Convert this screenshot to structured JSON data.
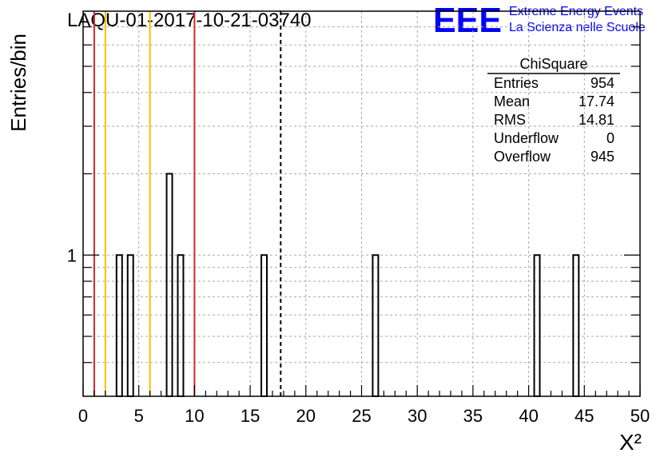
{
  "chart_data": {
    "type": "bar",
    "title": "LAQU-01-2017-10-21-03740",
    "xlabel": "X²",
    "ylabel": "Entries/bin",
    "xlim": [
      0,
      50
    ],
    "y_scale": "log",
    "ylim": [
      0.3,
      8
    ],
    "x_ticks": [
      "0",
      "5",
      "10",
      "15",
      "20",
      "25",
      "30",
      "35",
      "40",
      "45",
      "50"
    ],
    "y_ticks": [
      "1"
    ],
    "grid": true,
    "bin_width": 0.5,
    "bins": [
      {
        "x": 3.0,
        "count": 1
      },
      {
        "x": 4.0,
        "count": 1
      },
      {
        "x": 7.5,
        "count": 2
      },
      {
        "x": 8.5,
        "count": 1
      },
      {
        "x": 16.0,
        "count": 1
      },
      {
        "x": 26.0,
        "count": 1
      },
      {
        "x": 40.5,
        "count": 1
      },
      {
        "x": 44.0,
        "count": 1
      }
    ],
    "vertical_lines": [
      {
        "x": 1,
        "color": "#d62728",
        "style": "solid"
      },
      {
        "x": 2,
        "color": "#f2c200",
        "style": "solid"
      },
      {
        "x": 6,
        "color": "#f2c200",
        "style": "solid"
      },
      {
        "x": 10,
        "color": "#d62728",
        "style": "solid"
      },
      {
        "x": 17.74,
        "color": "#000000",
        "style": "dashed"
      }
    ],
    "stats_box": {
      "title": "ChiSquare",
      "rows": [
        {
          "label": "Entries",
          "value": "954"
        },
        {
          "label": "Mean",
          "value": "17.74"
        },
        {
          "label": "RMS",
          "value": "14.81"
        },
        {
          "label": "Underflow",
          "value": "0"
        },
        {
          "label": "Overflow",
          "value": "945"
        }
      ]
    }
  },
  "logo": {
    "mark": "EEE",
    "line1": "Extreme Energy Events",
    "line2": "La Scienza nelle Scuole",
    "color": "#0000ff"
  }
}
